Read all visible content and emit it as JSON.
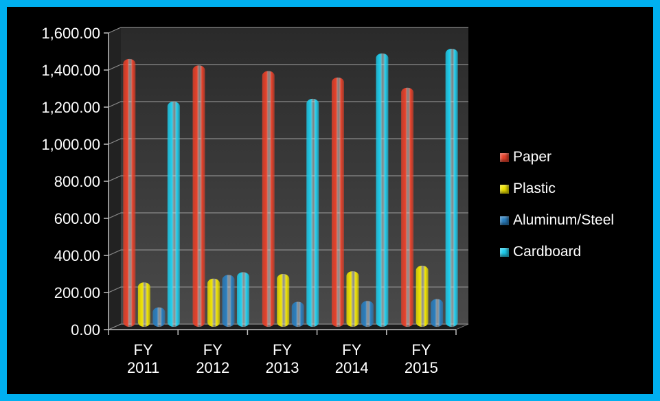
{
  "chart_data": {
    "type": "bar",
    "categories": [
      [
        "FY",
        "2011"
      ],
      [
        "FY",
        "2012"
      ],
      [
        "FY",
        "2013"
      ],
      [
        "FY",
        "2014"
      ],
      [
        "FY",
        "2015"
      ]
    ],
    "series": [
      {
        "name": "Paper",
        "color": "#e8412a",
        "values": [
          1445,
          1410,
          1380,
          1345,
          1290
        ]
      },
      {
        "name": "Plastic",
        "color": "#f2e600",
        "values": [
          240,
          260,
          285,
          300,
          330
        ]
      },
      {
        "name": "Aluminum/Steel",
        "color": "#2a7fc0",
        "values": [
          105,
          280,
          135,
          140,
          150
        ]
      },
      {
        "name": "Cardboard",
        "color": "#1fd0f0",
        "values": [
          1215,
          295,
          1230,
          1475,
          1500
        ]
      }
    ],
    "yticks": [
      "0.00",
      "200.00",
      "400.00",
      "600.00",
      "800.00",
      "1,000.00",
      "1,200.00",
      "1,400.00",
      "1,600.00"
    ],
    "ylim": [
      0,
      1600
    ],
    "title": "",
    "xlabel": "",
    "ylabel": "",
    "legend_position": "right",
    "grid": true
  }
}
